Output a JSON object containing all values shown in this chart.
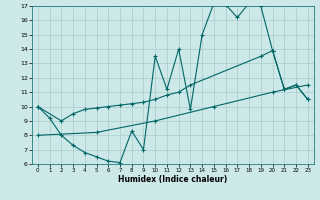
{
  "xlabel": "Humidex (Indice chaleur)",
  "xlim": [
    -0.5,
    23.5
  ],
  "ylim": [
    6,
    17
  ],
  "yticks": [
    6,
    7,
    8,
    9,
    10,
    11,
    12,
    13,
    14,
    15,
    16,
    17
  ],
  "xticks": [
    0,
    1,
    2,
    3,
    4,
    5,
    6,
    7,
    8,
    9,
    10,
    11,
    12,
    13,
    14,
    15,
    16,
    17,
    18,
    19,
    20,
    21,
    22,
    23
  ],
  "bg_color": "#cce8e8",
  "grid_color": "#aacccc",
  "line_color": "#006666",
  "line1_x": [
    0,
    1,
    2,
    3,
    4,
    5,
    6,
    7,
    8,
    9,
    10,
    11,
    12,
    13,
    14,
    15,
    16,
    17,
    18,
    19,
    20,
    21,
    22,
    23
  ],
  "line1_y": [
    10,
    9.2,
    8.0,
    7.3,
    6.8,
    6.5,
    6.2,
    6.1,
    8.3,
    7.0,
    13.5,
    11.2,
    14.0,
    9.8,
    15.0,
    17.2,
    17.1,
    16.2,
    17.2,
    17.0,
    13.9,
    11.2,
    11.5,
    10.5
  ],
  "line2_x": [
    0,
    2,
    3,
    4,
    5,
    6,
    7,
    8,
    9,
    10,
    11,
    12,
    13,
    19,
    20,
    21,
    22,
    23
  ],
  "line2_y": [
    10,
    9.0,
    9.5,
    9.8,
    9.9,
    10.0,
    10.1,
    10.2,
    10.3,
    10.5,
    10.8,
    11.0,
    11.5,
    13.5,
    13.9,
    11.2,
    11.5,
    10.5
  ],
  "line3_x": [
    0,
    5,
    10,
    15,
    20,
    23
  ],
  "line3_y": [
    8.0,
    8.2,
    9.0,
    10.0,
    11.0,
    11.5
  ]
}
